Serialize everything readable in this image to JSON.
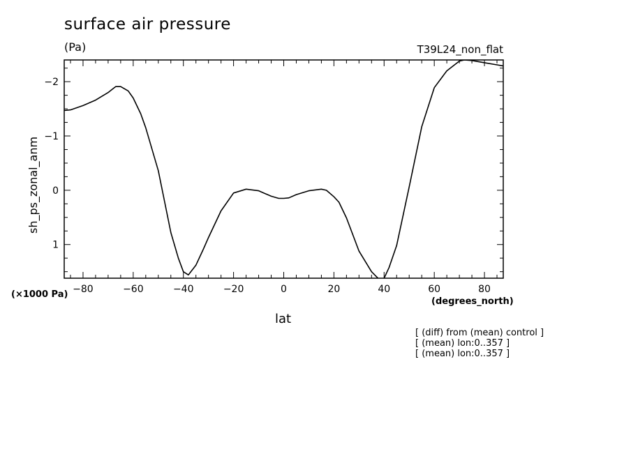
{
  "header": {
    "title": "surface air pressure",
    "units": "(Pa)",
    "run": "T39L24_non_flat"
  },
  "footer": {
    "scale_label": "(×1000 Pa)",
    "x_units": "(degrees_north)",
    "notes": [
      "[ (diff) from (mean) control ]",
      "[ (mean) lon:0..357 ]",
      "[ (mean) lon:0..357 ]"
    ]
  },
  "chart_data": {
    "type": "line",
    "xlabel": "lat",
    "ylabel": "sh_ps_zonal_anm",
    "xlim": [
      -87.5,
      87.5
    ],
    "ylim": [
      1.62,
      -2.4
    ],
    "x_ticks": [
      -80,
      -60,
      -40,
      -20,
      0,
      20,
      40,
      60,
      80
    ],
    "x_tick_labels": [
      "−80",
      "−60",
      "−40",
      "−20",
      "0",
      "20",
      "40",
      "60",
      "80"
    ],
    "y_ticks": [
      -2,
      -1,
      0,
      1
    ],
    "y_tick_labels": [
      "−2",
      "−1",
      "0",
      "1"
    ],
    "grid": false,
    "series": [
      {
        "x": [
          -87.5,
          -85,
          -80,
          -75,
          -70,
          -67,
          -65,
          -62,
          -60,
          -57,
          -55,
          -50,
          -45,
          -42,
          -40,
          -38,
          -35,
          -32,
          -30,
          -25,
          -20,
          -15,
          -10,
          -5,
          -2,
          0,
          2,
          5,
          10,
          15,
          17,
          20,
          22,
          25,
          30,
          35,
          38,
          40,
          42,
          45,
          50,
          55,
          60,
          65,
          70,
          72,
          75,
          80,
          85,
          87.5
        ],
        "y": [
          -1.47,
          -1.48,
          -1.56,
          -1.66,
          -1.8,
          -1.91,
          -1.91,
          -1.83,
          -1.7,
          -1.41,
          -1.15,
          -0.36,
          0.78,
          1.25,
          1.5,
          1.56,
          1.38,
          1.08,
          0.87,
          0.38,
          0.05,
          -0.02,
          0.01,
          0.11,
          0.15,
          0.15,
          0.14,
          0.08,
          0.01,
          -0.02,
          0.0,
          0.12,
          0.22,
          0.51,
          1.12,
          1.5,
          1.64,
          1.62,
          1.42,
          1.02,
          -0.06,
          -1.17,
          -1.89,
          -2.2,
          -2.38,
          -2.4,
          -2.39,
          -2.35,
          -2.31,
          -2.29
        ]
      }
    ]
  }
}
